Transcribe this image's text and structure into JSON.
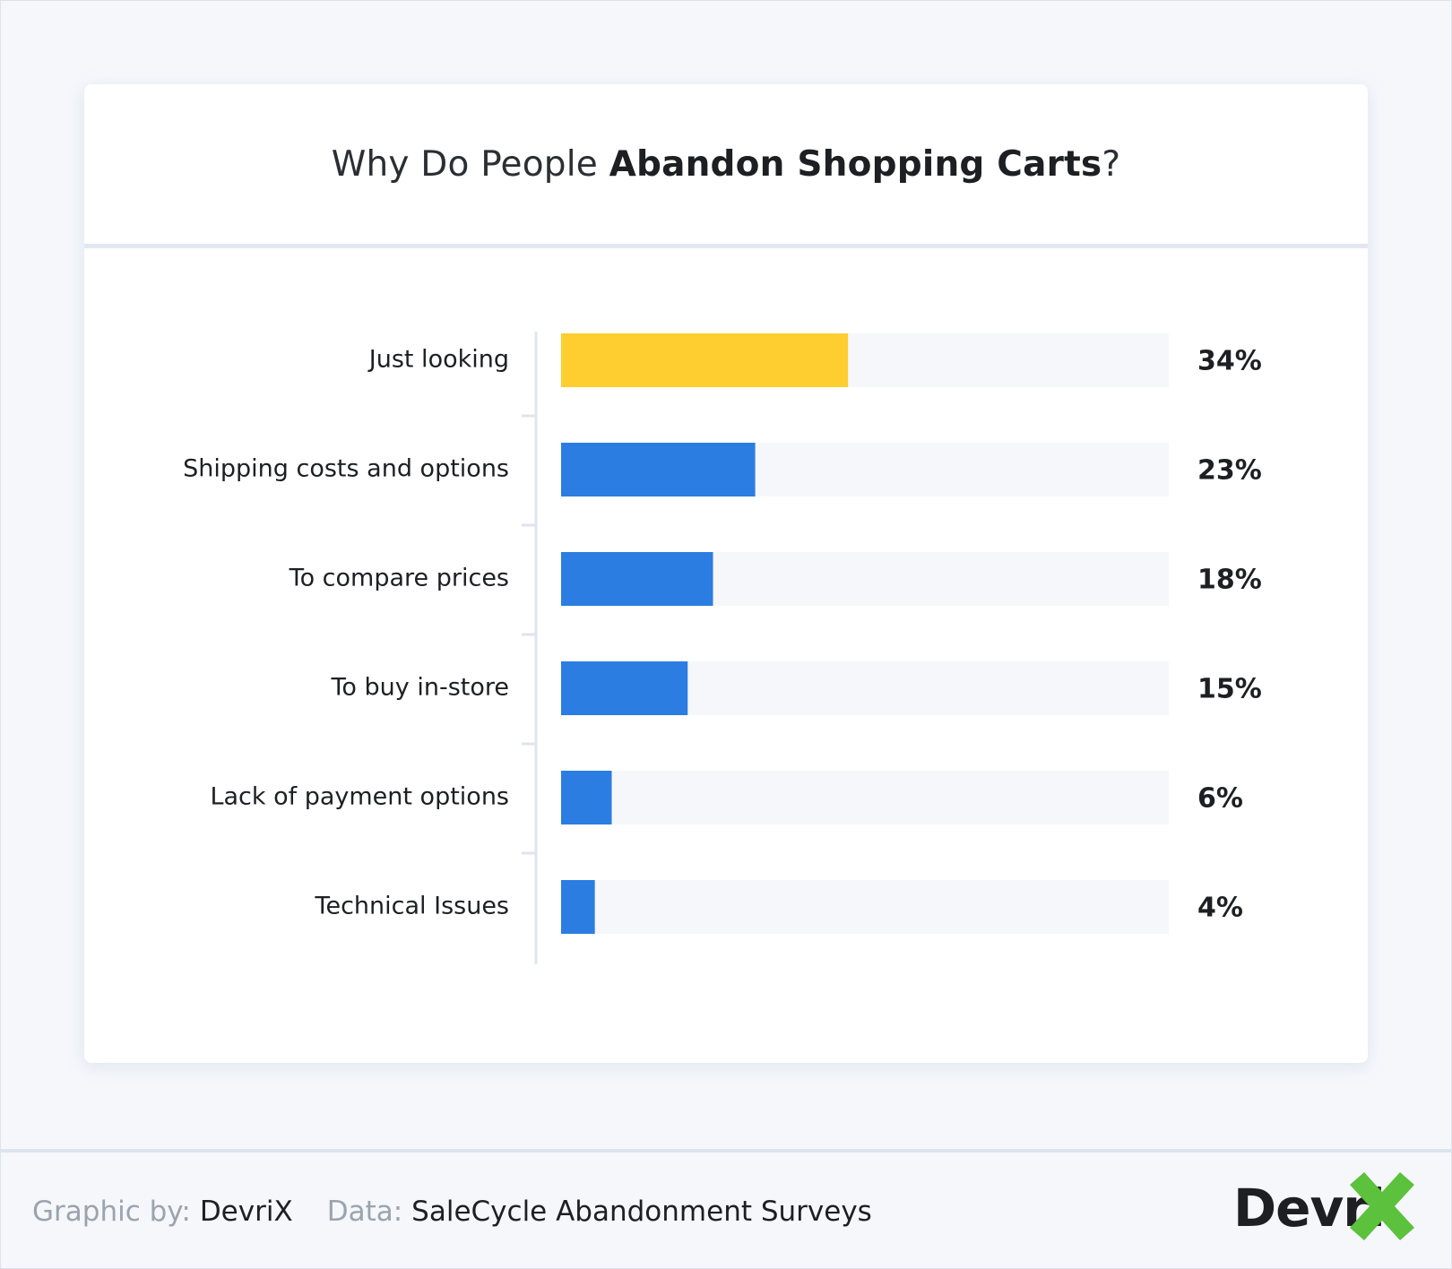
{
  "title": {
    "prefix": "Why Do People ",
    "emphasis": "Abandon Shopping Carts",
    "suffix": "?"
  },
  "colors": {
    "highlight": "#fecd2f",
    "bar": "#2b7de1",
    "track": "#f5f7fb",
    "axis": "#dfe5ee",
    "logo_x": "#5cc13c"
  },
  "chart_data": {
    "type": "bar",
    "orientation": "horizontal",
    "categories": [
      "Just looking",
      "Shipping costs and options",
      "To compare prices",
      "To buy in-store",
      "Lack of payment options",
      "Technical Issues"
    ],
    "values": [
      34,
      23,
      18,
      15,
      6,
      4
    ],
    "value_labels": [
      "34%",
      "23%",
      "18%",
      "15%",
      "6%",
      "4%"
    ],
    "highlighted_index": 0,
    "xlim": [
      0,
      72
    ],
    "grid": false,
    "legend": "none"
  },
  "footer": {
    "graphic_label": "Graphic by:",
    "graphic_value": "DevriX",
    "data_label": "Data:",
    "data_value": "SaleCycle Abandonment Surveys"
  },
  "logo": {
    "text": "Devri",
    "icon": "x-mark-icon"
  }
}
